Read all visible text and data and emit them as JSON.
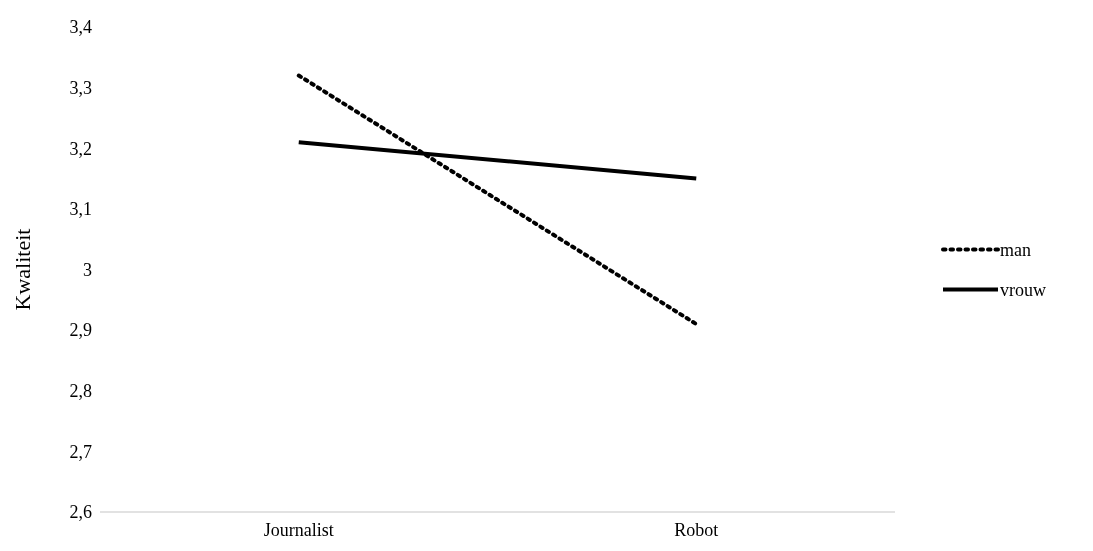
{
  "chart_data": {
    "type": "line",
    "ylabel": "Kwaliteit",
    "categories": [
      "Journalist",
      "Robot"
    ],
    "series": [
      {
        "name": "man",
        "color": "#000000",
        "values": [
          3.32,
          2.91
        ],
        "line_style": "dotted"
      },
      {
        "name": "vrouw",
        "color": "#000000",
        "values": [
          3.21,
          3.15
        ],
        "line_style": "solid"
      }
    ],
    "ylim": [
      2.6,
      3.4
    ],
    "yticks": [
      {
        "value": 2.6,
        "label": "2,6"
      },
      {
        "value": 2.7,
        "label": "2,7"
      },
      {
        "value": 2.8,
        "label": "2,8"
      },
      {
        "value": 2.9,
        "label": "2,9"
      },
      {
        "value": 3,
        "label": "3"
      },
      {
        "value": 3.1,
        "label": "3,1"
      },
      {
        "value": 3.2,
        "label": "3,2"
      },
      {
        "value": 3.3,
        "label": "3,3"
      },
      {
        "value": 3.4,
        "label": "3,4"
      }
    ],
    "grid": false,
    "legend": "right",
    "marker": "none"
  }
}
